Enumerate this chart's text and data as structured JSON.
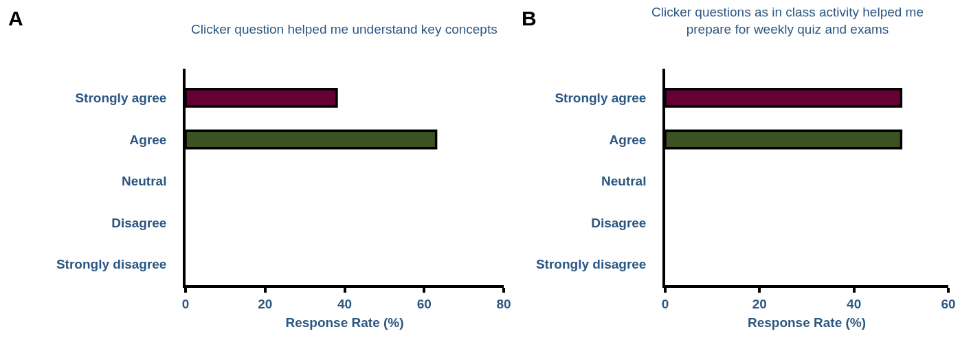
{
  "chart_data": [
    {
      "type": "bar",
      "orientation": "horizontal",
      "title": "Clicker question helped me understand key concepts",
      "xlabel": "Response Rate (%)",
      "annotations": [
        "A"
      ],
      "categories": [
        "Strongly agree",
        "Agree",
        "Neutral",
        "Disagree",
        "Strongly disagree"
      ],
      "values": [
        38,
        63,
        null,
        null,
        null
      ],
      "colors": [
        "#660033",
        "#3b5323",
        "#660033",
        "#660033",
        "#660033"
      ],
      "xlim": [
        0,
        80
      ],
      "xticks": [
        0,
        20,
        40,
        60,
        80
      ],
      "legend": false
    },
    {
      "type": "bar",
      "orientation": "horizontal",
      "title": "Clicker questions as in class activity helped me\nprepare for weekly quiz and exams",
      "xlabel": "Response Rate (%)",
      "annotations": [
        "B"
      ],
      "categories": [
        "Strongly agree",
        "Agree",
        "Neutral",
        "Disagree",
        "Strongly disagree"
      ],
      "values": [
        50,
        50,
        null,
        null,
        null
      ],
      "colors": [
        "#660033",
        "#3b5323",
        "#660033",
        "#660033",
        "#660033"
      ],
      "xlim": [
        0,
        60
      ],
      "xticks": [
        0,
        20,
        40,
        60
      ],
      "legend": false
    }
  ]
}
